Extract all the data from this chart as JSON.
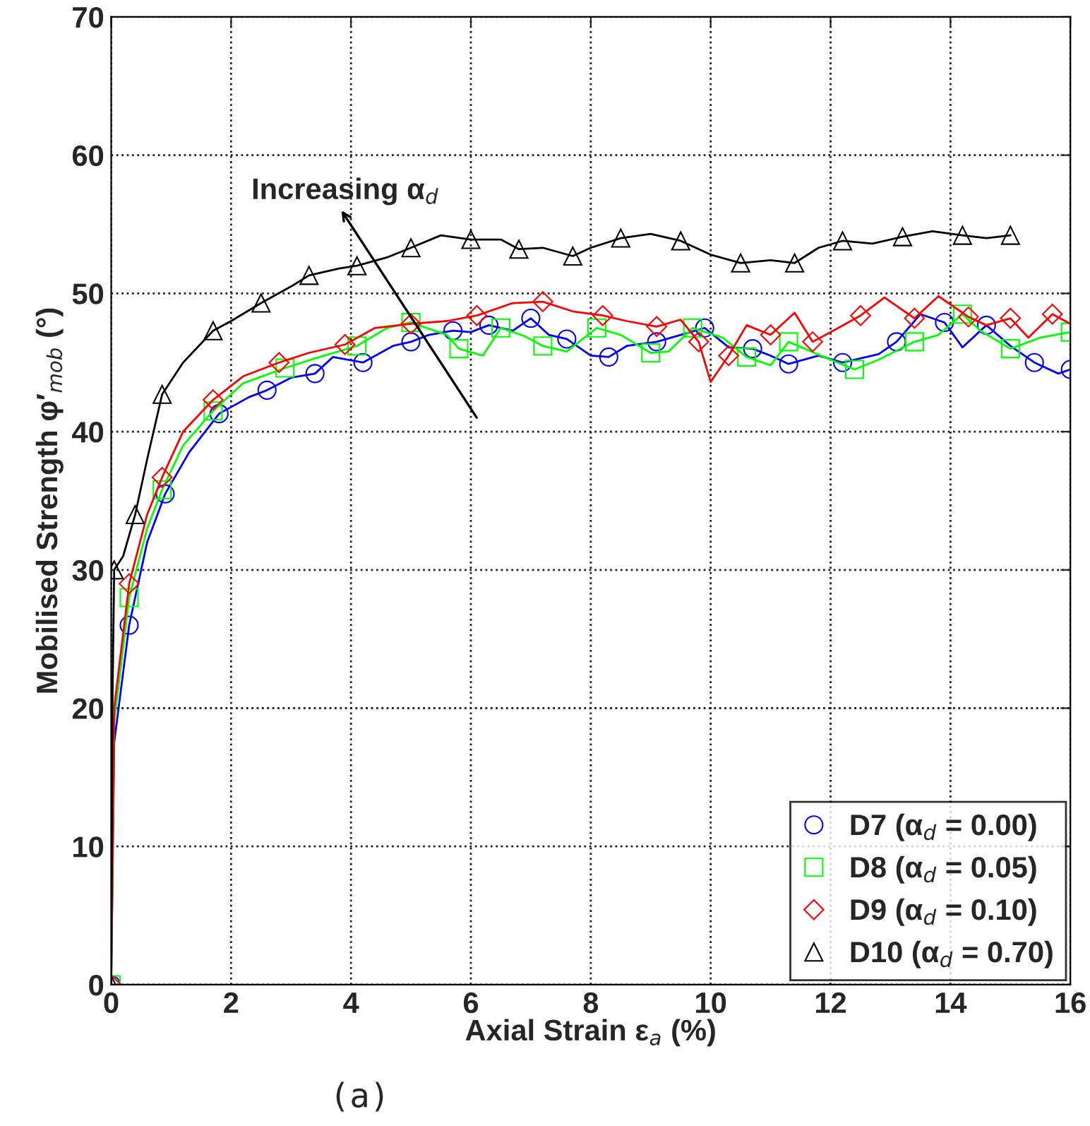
{
  "chart_data": {
    "type": "line",
    "xlabel": "Axial Strain ε$_{a}$ (%)",
    "ylabel": "Mobilised Strength φ′$_{mob}$ (°)",
    "xlim": [
      0,
      16
    ],
    "ylim": [
      0,
      70
    ],
    "xticks": [
      0,
      2,
      4,
      6,
      8,
      10,
      12,
      14,
      16
    ],
    "yticks": [
      0,
      10,
      20,
      30,
      40,
      50,
      60,
      70
    ],
    "grid": true,
    "legend": "bottom right",
    "line_style": "solid",
    "series": [
      {
        "name": "D7 (α$_{d}$ = 0.00)",
        "color": "#0000ff",
        "marker": "circle",
        "x": [
          0,
          0.05,
          0.3,
          0.6,
          0.9,
          1.3,
          1.8,
          2.3,
          2.6,
          3.0,
          3.4,
          3.7,
          4.2,
          4.7,
          5.0,
          5.3,
          5.7,
          6.0,
          6.3,
          6.7,
          7.0,
          7.3,
          7.6,
          8.0,
          8.3,
          8.6,
          9.1,
          9.5,
          9.9,
          10.3,
          10.7,
          11.0,
          11.3,
          11.8,
          12.2,
          12.8,
          13.1,
          13.5,
          13.9,
          14.2,
          14.6,
          15.0,
          15.4,
          15.8,
          16
        ],
        "values": [
          0,
          17.5,
          26,
          32,
          35.5,
          38.5,
          41.3,
          42.5,
          43,
          43.9,
          44.2,
          45.4,
          45,
          46.2,
          46.5,
          47,
          47.3,
          47.2,
          47.7,
          47.3,
          48.2,
          47,
          46.7,
          45.5,
          45.4,
          46.2,
          46.5,
          47,
          47.5,
          46.1,
          46,
          45.5,
          44.9,
          45.5,
          45,
          45.6,
          46.5,
          48.5,
          47.9,
          46.1,
          47.7,
          46.2,
          45,
          44.2,
          44.5
        ]
      },
      {
        "name": "D8 (α$_{d}$ = 0.05)",
        "color": "#00ff00",
        "marker": "square",
        "x": [
          0,
          0.05,
          0.3,
          0.6,
          0.85,
          1.2,
          1.7,
          2.2,
          2.9,
          3.4,
          4.1,
          4.6,
          5.0,
          5.6,
          5.8,
          6.2,
          6.5,
          6.9,
          7.2,
          7.6,
          8.1,
          8.5,
          9.0,
          9.3,
          9.7,
          10.2,
          10.6,
          11.0,
          11.3,
          12.0,
          12.4,
          12.8,
          13.4,
          13.8,
          14.2,
          14.5,
          15.0,
          15.5,
          16
        ],
        "values": [
          0,
          19,
          28,
          33,
          35.8,
          39,
          41.5,
          43.5,
          44.6,
          45.3,
          46.2,
          47.5,
          47.9,
          47,
          46,
          45.5,
          47.5,
          46.9,
          46.2,
          45.8,
          47.5,
          47,
          45.7,
          45.8,
          47.5,
          46.8,
          45.4,
          44.8,
          46.5,
          45.2,
          44.5,
          45.2,
          46.5,
          47,
          48.5,
          47.3,
          46,
          46.8,
          47.2
        ]
      },
      {
        "name": "D9 (α$_{d}$ = 0.10)",
        "color": "#ff0000",
        "marker": "diamond",
        "x": [
          0,
          0.05,
          0.3,
          0.6,
          0.85,
          1.2,
          1.7,
          2.2,
          2.8,
          3.3,
          3.9,
          4.4,
          5.0,
          5.6,
          6.1,
          6.7,
          7.2,
          7.7,
          8.2,
          8.6,
          9.1,
          9.5,
          9.8,
          10.0,
          10.3,
          10.6,
          11.0,
          11.4,
          11.7,
          12.0,
          12.5,
          12.9,
          13.4,
          13.8,
          14.3,
          14.6,
          15.0,
          15.3,
          15.7,
          16
        ],
        "values": [
          0,
          20,
          29,
          34,
          36.7,
          40,
          42.3,
          44,
          45,
          45.7,
          46.3,
          47.5,
          47.8,
          48,
          48.4,
          49.3,
          49.4,
          48.7,
          48.4,
          48,
          47.6,
          48.1,
          46.5,
          43.6,
          45.5,
          47.7,
          47,
          48.6,
          46.5,
          47.2,
          48.4,
          49.7,
          48.2,
          49.8,
          48.3,
          47.7,
          48.2,
          46.8,
          48.5,
          47.8
        ]
      },
      {
        "name": "D10 (α$_{d}$ = 0.70)",
        "color": "#000000",
        "marker": "triangle",
        "x": [
          0,
          0.02,
          0.05,
          0.2,
          0.4,
          0.6,
          0.85,
          1.2,
          1.7,
          2.0,
          2.5,
          3.0,
          3.3,
          3.8,
          4.1,
          4.6,
          5.0,
          5.5,
          6.0,
          6.5,
          6.8,
          7.2,
          7.7,
          8.0,
          8.5,
          9.0,
          9.5,
          10.0,
          10.5,
          11.0,
          11.4,
          11.8,
          12.2,
          12.7,
          13.2,
          13.7,
          14.2,
          14.6,
          15.0
        ],
        "values": [
          0,
          20,
          30,
          31,
          34,
          38,
          42.7,
          45,
          47.3,
          48,
          49.3,
          50.5,
          51.3,
          51.8,
          52,
          52.6,
          53.3,
          54.2,
          53.9,
          53.9,
          53.2,
          53.3,
          52.7,
          53.3,
          54,
          54.3,
          53.8,
          52.8,
          52.2,
          52.4,
          52.2,
          53.3,
          53.8,
          53.6,
          54.1,
          54.5,
          54.2,
          54,
          54.2
        ]
      }
    ],
    "annotations": [
      "Increasing α$_{d}$",
      "(a)"
    ]
  }
}
